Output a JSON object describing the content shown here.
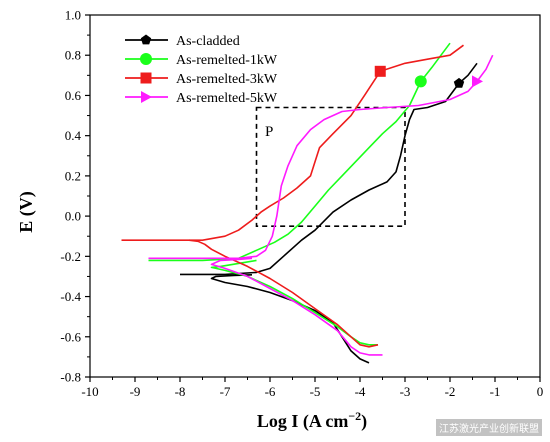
{
  "chart_data": {
    "type": "line",
    "xlabel_main": "Log I (A cm",
    "xlabel_sup": "−2",
    "xlabel_tail": ")",
    "ylabel": "E (V)",
    "xlim": [
      -10,
      0
    ],
    "ylim": [
      -0.8,
      1.0
    ],
    "xticks": [
      "-10",
      "-9",
      "-8",
      "-7",
      "-6",
      "-5",
      "-4",
      "-3",
      "-2",
      "-1",
      "0"
    ],
    "yticks": [
      "-0.8",
      "-0.6",
      "-0.4",
      "-0.2",
      "0.0",
      "0.2",
      "0.4",
      "0.6",
      "0.8",
      "1.0"
    ],
    "annotation": "P",
    "inset_box": {
      "x": [
        -6.3,
        -3.0
      ],
      "y": [
        -0.05,
        0.54
      ]
    },
    "series": [
      {
        "name": "As-cladded",
        "color": "#000000",
        "marker": "pentagon",
        "marker_point": [
          -1.8,
          0.66
        ],
        "cathodic": [
          [
            -3.8,
            -0.73
          ],
          [
            -4.0,
            -0.71
          ],
          [
            -4.2,
            -0.67
          ],
          [
            -4.4,
            -0.6
          ],
          [
            -4.6,
            -0.53
          ],
          [
            -5.0,
            -0.47
          ],
          [
            -5.5,
            -0.42
          ],
          [
            -6.0,
            -0.38
          ],
          [
            -6.5,
            -0.35
          ],
          [
            -7.0,
            -0.33
          ],
          [
            -7.3,
            -0.31
          ],
          [
            -7.2,
            -0.3
          ],
          [
            -6.8,
            -0.295
          ],
          [
            -6.4,
            -0.292
          ]
        ],
        "anodic": [
          [
            -8.0,
            -0.29
          ],
          [
            -7.0,
            -0.29
          ],
          [
            -6.3,
            -0.28
          ],
          [
            -6.0,
            -0.26
          ],
          [
            -5.7,
            -0.2
          ],
          [
            -5.3,
            -0.12
          ],
          [
            -5.0,
            -0.07
          ],
          [
            -4.6,
            0.02
          ],
          [
            -4.2,
            0.08
          ],
          [
            -3.8,
            0.13
          ],
          [
            -3.4,
            0.17
          ],
          [
            -3.2,
            0.22
          ],
          [
            -3.1,
            0.3
          ],
          [
            -3.0,
            0.4
          ],
          [
            -2.9,
            0.48
          ],
          [
            -2.8,
            0.53
          ],
          [
            -2.5,
            0.54
          ],
          [
            -2.1,
            0.57
          ],
          [
            -1.8,
            0.66
          ],
          [
            -1.6,
            0.7
          ],
          [
            -1.4,
            0.76
          ]
        ]
      },
      {
        "name": "As-remelted-1kW",
        "color": "#1aff1a",
        "marker": "circle",
        "marker_point": [
          -2.65,
          0.67
        ],
        "cathodic": [
          [
            -3.6,
            -0.64
          ],
          [
            -3.8,
            -0.64
          ],
          [
            -4.0,
            -0.63
          ],
          [
            -4.2,
            -0.6
          ],
          [
            -4.5,
            -0.55
          ],
          [
            -5.0,
            -0.48
          ],
          [
            -5.5,
            -0.41
          ],
          [
            -6.0,
            -0.35
          ],
          [
            -6.5,
            -0.3
          ],
          [
            -7.0,
            -0.27
          ],
          [
            -7.3,
            -0.255
          ],
          [
            -7.1,
            -0.25
          ],
          [
            -6.7,
            -0.235
          ],
          [
            -6.3,
            -0.22
          ]
        ],
        "anodic": [
          [
            -8.7,
            -0.22
          ],
          [
            -7.5,
            -0.22
          ],
          [
            -6.7,
            -0.21
          ],
          [
            -6.3,
            -0.17
          ],
          [
            -6.1,
            -0.15
          ],
          [
            -5.9,
            -0.13
          ],
          [
            -5.6,
            -0.09
          ],
          [
            -5.3,
            -0.03
          ],
          [
            -5.0,
            0.05
          ],
          [
            -4.7,
            0.13
          ],
          [
            -4.4,
            0.2
          ],
          [
            -4.1,
            0.27
          ],
          [
            -3.8,
            0.34
          ],
          [
            -3.5,
            0.41
          ],
          [
            -3.2,
            0.47
          ],
          [
            -2.9,
            0.55
          ],
          [
            -2.65,
            0.67
          ],
          [
            -2.4,
            0.74
          ],
          [
            -2.2,
            0.8
          ],
          [
            -2.0,
            0.86
          ]
        ]
      },
      {
        "name": "As-remelted-3kW",
        "color": "#ee1c1c",
        "marker": "square",
        "marker_point": [
          -3.55,
          0.72
        ],
        "cathodic": [
          [
            -3.6,
            -0.64
          ],
          [
            -3.8,
            -0.65
          ],
          [
            -4.0,
            -0.64
          ],
          [
            -4.2,
            -0.6
          ],
          [
            -4.5,
            -0.54
          ],
          [
            -5.0,
            -0.46
          ],
          [
            -5.5,
            -0.38
          ],
          [
            -6.0,
            -0.31
          ],
          [
            -6.5,
            -0.25
          ],
          [
            -7.0,
            -0.2
          ],
          [
            -7.3,
            -0.165
          ],
          [
            -7.45,
            -0.14
          ],
          [
            -7.6,
            -0.125
          ],
          [
            -7.8,
            -0.12
          ]
        ],
        "anodic": [
          [
            -9.3,
            -0.12
          ],
          [
            -8.2,
            -0.12
          ],
          [
            -7.5,
            -0.12
          ],
          [
            -7.0,
            -0.1
          ],
          [
            -6.7,
            -0.07
          ],
          [
            -6.4,
            -0.02
          ],
          [
            -6.2,
            0.02
          ],
          [
            -6.0,
            0.05
          ],
          [
            -5.7,
            0.09
          ],
          [
            -5.4,
            0.14
          ],
          [
            -5.1,
            0.2
          ],
          [
            -5.0,
            0.27
          ],
          [
            -4.9,
            0.34
          ],
          [
            -4.6,
            0.41
          ],
          [
            -4.2,
            0.5
          ],
          [
            -3.9,
            0.6
          ],
          [
            -3.55,
            0.72
          ],
          [
            -3.0,
            0.76
          ],
          [
            -2.5,
            0.78
          ],
          [
            -2.0,
            0.8
          ],
          [
            -1.7,
            0.85
          ]
        ]
      },
      {
        "name": "As-remelted-5kW",
        "color": "#ff1aff",
        "marker": "triangle",
        "marker_point": [
          -1.4,
          0.67
        ],
        "cathodic": [
          [
            -3.5,
            -0.69
          ],
          [
            -3.8,
            -0.69
          ],
          [
            -4.0,
            -0.68
          ],
          [
            -4.2,
            -0.65
          ],
          [
            -4.5,
            -0.57
          ],
          [
            -5.0,
            -0.49
          ],
          [
            -5.5,
            -0.42
          ],
          [
            -6.0,
            -0.36
          ],
          [
            -6.5,
            -0.3
          ],
          [
            -7.0,
            -0.26
          ],
          [
            -7.3,
            -0.24
          ],
          [
            -7.1,
            -0.22
          ],
          [
            -6.7,
            -0.215
          ],
          [
            -6.4,
            -0.21
          ]
        ],
        "anodic": [
          [
            -8.7,
            -0.21
          ],
          [
            -7.5,
            -0.21
          ],
          [
            -6.7,
            -0.21
          ],
          [
            -6.3,
            -0.2
          ],
          [
            -6.1,
            -0.17
          ],
          [
            -5.95,
            -0.1
          ],
          [
            -5.85,
            0.0
          ],
          [
            -5.75,
            0.15
          ],
          [
            -5.6,
            0.25
          ],
          [
            -5.4,
            0.35
          ],
          [
            -5.1,
            0.43
          ],
          [
            -4.8,
            0.48
          ],
          [
            -4.4,
            0.52
          ],
          [
            -4.0,
            0.53
          ],
          [
            -3.4,
            0.54
          ],
          [
            -2.7,
            0.55
          ],
          [
            -2.0,
            0.58
          ],
          [
            -1.6,
            0.62
          ],
          [
            -1.4,
            0.67
          ],
          [
            -1.2,
            0.73
          ],
          [
            -1.05,
            0.8
          ]
        ]
      }
    ]
  },
  "watermark_text": "江苏激光产业创新联盟"
}
